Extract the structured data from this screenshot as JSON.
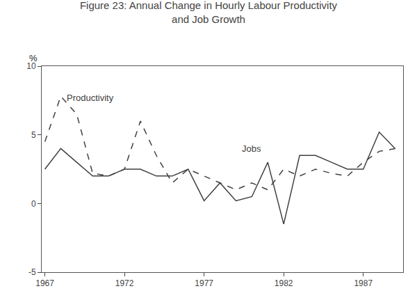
{
  "chart_data": {
    "type": "line",
    "title": "Figure 23: Annual Change in Hourly Labour Productivity\nand Job Growth",
    "ylabel": "%",
    "x": [
      1967,
      1968,
      1969,
      1970,
      1971,
      1972,
      1973,
      1974,
      1975,
      1976,
      1977,
      1978,
      1979,
      1980,
      1981,
      1982,
      1983,
      1984,
      1985,
      1986,
      1987,
      1988,
      1989
    ],
    "series": [
      {
        "color": "#404040",
        "line_style": "dashed",
        "values": [
          4.5,
          7.8,
          6.5,
          2.2,
          2.0,
          2.5,
          6.0,
          3.5,
          1.5,
          2.5,
          2.0,
          1.5,
          1.0,
          1.5,
          1.0,
          2.5,
          2.0,
          2.5,
          2.2,
          2.0,
          3.0,
          3.8,
          4.0
        ]
      },
      {
        "color": "#404040",
        "line_style": "solid",
        "values": [
          2.5,
          4.0,
          3.0,
          2.0,
          2.0,
          2.5,
          2.5,
          2.0,
          2.0,
          2.5,
          0.2,
          1.5,
          0.2,
          0.5,
          3.0,
          -1.5,
          3.5,
          3.5,
          3.0,
          2.5,
          2.5,
          5.2,
          4.0
        ]
      }
    ],
    "annotations": [
      {
        "text": "Productivity",
        "x": 1968.3,
        "y": 7.2,
        "color": "#404040"
      },
      {
        "text": "Jobs",
        "x": 1979.3,
        "y": 3.5,
        "color": "#404040"
      }
    ],
    "xlim": [
      1966.8,
      1989.5
    ],
    "xticks": [
      1967,
      1972,
      1977,
      1982,
      1987
    ],
    "ylim": [
      -5,
      10
    ],
    "yticks": [
      -5,
      0,
      5,
      10
    ],
    "grid": false
  }
}
